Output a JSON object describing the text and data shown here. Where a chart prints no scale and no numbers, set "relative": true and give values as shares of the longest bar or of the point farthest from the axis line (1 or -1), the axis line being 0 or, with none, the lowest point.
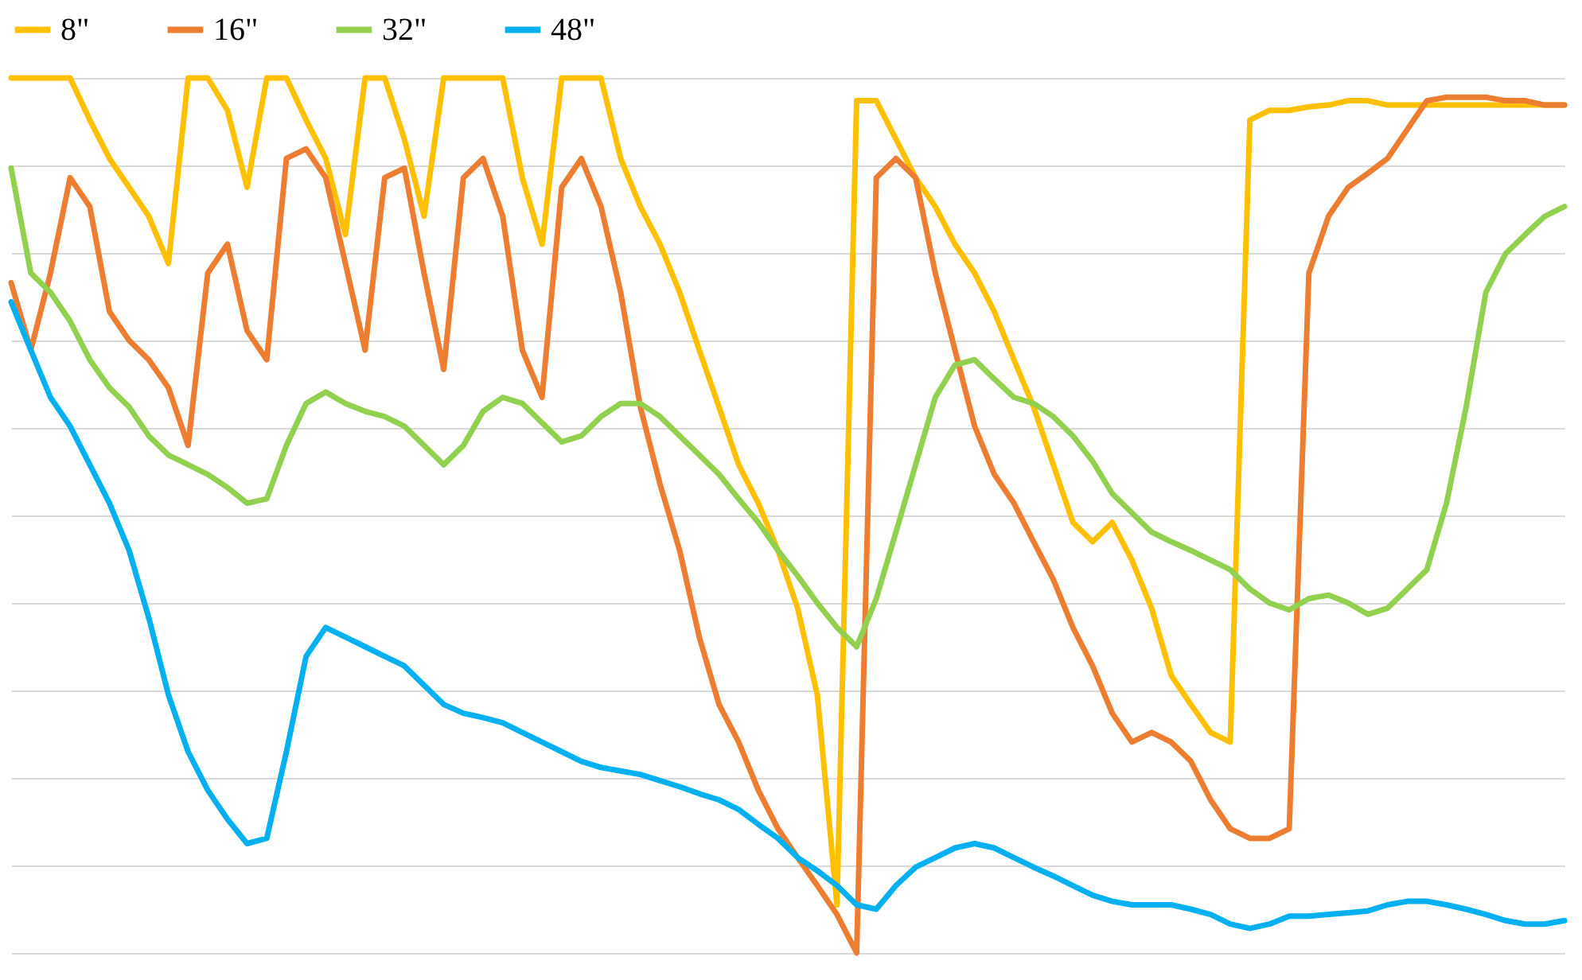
{
  "chart_data": {
    "type": "line",
    "relative": true,
    "legend": "top",
    "grid": "y",
    "line_style": "solid",
    "marker": "none",
    "categories": [
      null,
      null,
      null,
      null,
      null,
      null,
      null,
      null,
      null,
      null,
      null,
      null,
      null,
      null,
      null,
      null,
      null,
      null,
      null,
      null,
      null,
      null,
      null,
      null,
      null,
      null,
      null,
      null,
      null,
      null,
      null,
      null,
      null,
      null,
      null,
      null,
      null,
      null,
      null,
      null,
      null,
      null,
      null,
      null,
      null,
      null,
      null,
      null,
      null,
      null,
      null,
      null,
      null,
      null,
      null,
      null,
      null,
      null,
      null,
      null,
      null,
      null,
      null,
      null,
      null,
      null,
      null,
      null,
      null,
      null,
      null,
      null,
      null,
      null,
      null,
      null,
      null,
      null,
      null,
      null
    ],
    "series": [
      {
        "name": "8\"",
        "color": "#ffc000",
        "values": [
          1,
          1,
          1,
          1,
          0.952,
          0.908,
          0.875,
          0.842,
          0.788,
          1,
          1,
          0.963,
          0.875,
          1,
          1,
          0.952,
          0.908,
          0.821,
          1,
          1,
          0.93,
          0.842,
          1,
          1,
          1,
          1,
          0.886,
          0.81,
          1,
          1,
          1,
          0.908,
          0.853,
          0.81,
          0.755,
          0.689,
          0.624,
          0.558,
          0.514,
          0.46,
          0.394,
          0.295,
          0.055,
          0.974,
          0.974,
          0.93,
          0.886,
          0.853,
          0.81,
          0.777,
          0.733,
          0.678,
          0.624,
          0.558,
          0.492,
          0.47,
          0.492,
          0.449,
          0.394,
          0.317,
          0.284,
          0.252,
          0.241,
          0.952,
          0.963,
          0.963,
          0.967,
          0.969,
          0.974,
          0.974,
          0.969,
          0.969,
          0.969,
          0.969,
          0.969,
          0.969,
          0.969,
          0.969,
          0.969,
          0.969
        ]
      },
      {
        "name": "16\"",
        "color": "#ed7d31",
        "values": [
          0.766,
          0.689,
          0.777,
          0.886,
          0.853,
          0.733,
          0.7,
          0.678,
          0.646,
          0.58,
          0.777,
          0.81,
          0.711,
          0.678,
          0.908,
          0.919,
          0.886,
          0.788,
          0.689,
          0.886,
          0.897,
          0.777,
          0.667,
          0.886,
          0.908,
          0.842,
          0.689,
          0.635,
          0.875,
          0.908,
          0.853,
          0.755,
          0.624,
          0.536,
          0.46,
          0.361,
          0.284,
          0.241,
          0.186,
          0.142,
          0.109,
          0.077,
          0.044,
          0,
          0.886,
          0.908,
          0.886,
          0.777,
          0.689,
          0.602,
          0.547,
          0.514,
          0.47,
          0.427,
          0.372,
          0.328,
          0.274,
          0.241,
          0.252,
          0.241,
          0.219,
          0.175,
          0.142,
          0.131,
          0.131,
          0.142,
          0.777,
          0.842,
          0.875,
          0.891,
          0.908,
          0.941,
          0.974,
          0.978,
          0.978,
          0.978,
          0.974,
          0.974,
          0.969,
          0.969
        ]
      },
      {
        "name": "32\"",
        "color": "#92d050",
        "values": [
          0.897,
          0.777,
          0.755,
          0.722,
          0.678,
          0.646,
          0.624,
          0.591,
          0.569,
          0.558,
          0.547,
          0.532,
          0.514,
          0.519,
          0.58,
          0.628,
          0.641,
          0.628,
          0.619,
          0.613,
          0.602,
          0.58,
          0.558,
          0.58,
          0.619,
          0.635,
          0.628,
          0.606,
          0.584,
          0.591,
          0.613,
          0.628,
          0.628,
          0.613,
          0.591,
          0.569,
          0.547,
          0.519,
          0.492,
          0.46,
          0.431,
          0.4,
          0.372,
          0.35,
          0.405,
          0.481,
          0.558,
          0.635,
          0.672,
          0.678,
          0.656,
          0.635,
          0.628,
          0.613,
          0.591,
          0.562,
          0.525,
          0.503,
          0.481,
          0.47,
          0.46,
          0.449,
          0.438,
          0.416,
          0.4,
          0.392,
          0.405,
          0.409,
          0.4,
          0.387,
          0.394,
          0.416,
          0.438,
          0.514,
          0.624,
          0.755,
          0.799,
          0.821,
          0.842,
          0.853
        ]
      },
      {
        "name": "48\"",
        "color": "#00b0f0",
        "values": [
          0.744,
          0.689,
          0.635,
          0.602,
          0.558,
          0.514,
          0.46,
          0.383,
          0.295,
          0.23,
          0.186,
          0.153,
          0.125,
          0.131,
          0.23,
          0.339,
          0.372,
          0.361,
          0.35,
          0.339,
          0.328,
          0.306,
          0.284,
          0.274,
          0.269,
          0.263,
          0.252,
          0.241,
          0.23,
          0.219,
          0.212,
          0.208,
          0.204,
          0.197,
          0.19,
          0.182,
          0.175,
          0.164,
          0.147,
          0.131,
          0.109,
          0.094,
          0.077,
          0.055,
          0.05,
          0.077,
          0.098,
          0.109,
          0.12,
          0.125,
          0.12,
          0.109,
          0.098,
          0.088,
          0.077,
          0.066,
          0.059,
          0.055,
          0.055,
          0.055,
          0.05,
          0.044,
          0.033,
          0.028,
          0.033,
          0.042,
          0.042,
          0.044,
          0.046,
          0.048,
          0.055,
          0.059,
          0.059,
          0.055,
          0.05,
          0.044,
          0.037,
          0.033,
          0.033,
          0.037
        ]
      }
    ]
  }
}
